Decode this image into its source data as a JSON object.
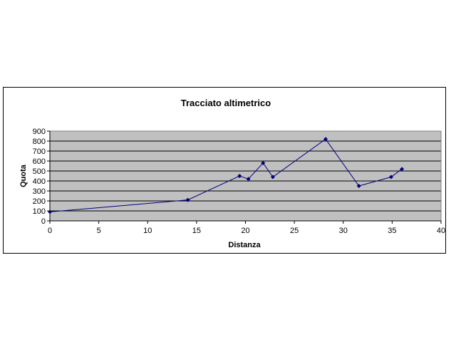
{
  "chart_data": {
    "type": "line",
    "title": "Tracciato altimetrico",
    "xlabel": "Distanza",
    "ylabel": "Quota",
    "xlim": [
      0,
      40
    ],
    "ylim": [
      0,
      900
    ],
    "xticks": [
      "0",
      "5",
      "10",
      "15",
      "20",
      "25",
      "30",
      "35",
      "40"
    ],
    "yticks": [
      "0",
      "100",
      "200",
      "300",
      "400",
      "500",
      "600",
      "700",
      "800",
      "900"
    ],
    "grid": true,
    "legend": "none",
    "plot_background": "#c0c0c0",
    "line_color": "#00007f",
    "series": [
      {
        "x": [
          0,
          14.1,
          19.4,
          20.3,
          21.8,
          22.8,
          28.2,
          31.6,
          34.9,
          36.0
        ],
        "y": [
          90,
          210,
          450,
          420,
          580,
          440,
          820,
          350,
          440,
          520
        ]
      }
    ]
  }
}
